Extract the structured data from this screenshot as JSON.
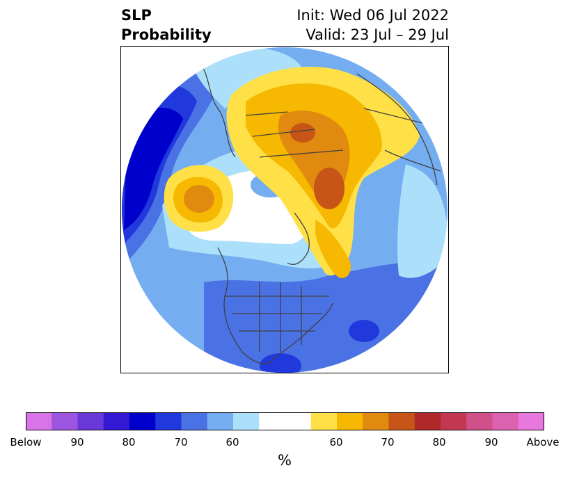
{
  "header": {
    "left_line1": "SLP",
    "left_line2": "Probability",
    "right_line1": "Init: Wed 06 Jul 2022",
    "right_line2": "Valid: 23 Jul – 29 Jul"
  },
  "colorbar": {
    "colors": [
      "#d874e8",
      "#9d55e0",
      "#6b38d8",
      "#3318d4",
      "#0000cc",
      "#2138dc",
      "#4a72e4",
      "#74aef0",
      "#ace0fa",
      "#ffffff",
      "#ffffff",
      "#ffe047",
      "#f6b800",
      "#e08a10",
      "#c85518",
      "#b0282a",
      "#c23850",
      "#d0508a",
      "#dc62b0",
      "#e878e0"
    ],
    "tick_labels": [
      "Below",
      "90",
      "80",
      "70",
      "60",
      "60",
      "70",
      "80",
      "90",
      "Above"
    ],
    "unit": "%"
  },
  "palette": {
    "below_60": "#ace0fa",
    "below_65": "#74aef0",
    "below_70": "#4a72e4",
    "below_75": "#2138dc",
    "below_80": "#0000cc",
    "above_60": "#ffe047",
    "above_65": "#f6b800",
    "above_70": "#e08a10",
    "above_75": "#c85518",
    "coastline": "#404040"
  }
}
